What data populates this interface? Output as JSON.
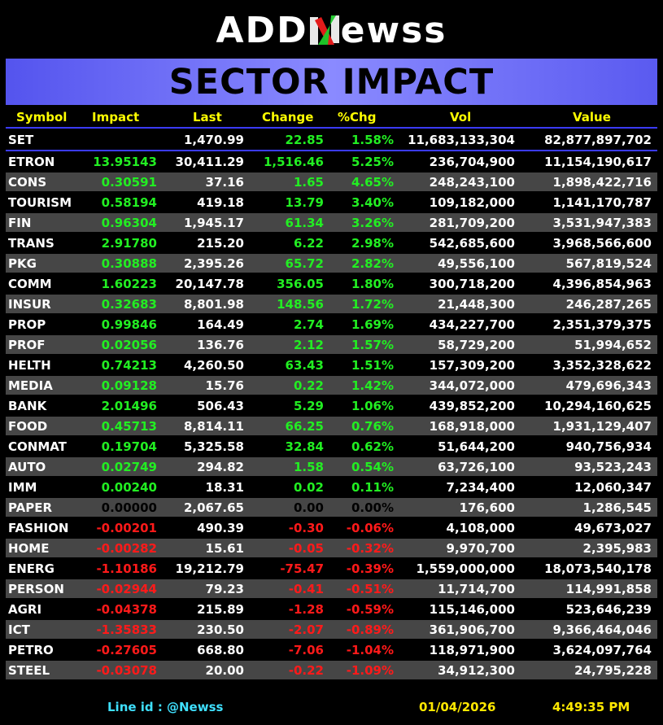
{
  "logo": {
    "part1": "ADD",
    "part2": "ewss"
  },
  "banner": {
    "title": "SECTOR IMPACT"
  },
  "headers": {
    "symbol": "Symbol",
    "impact": "Impact",
    "last": "Last",
    "change": "Change",
    "pct": "%Chg",
    "vol": "Vol",
    "value": "Value"
  },
  "set_row": {
    "symbol": "SET",
    "impact": "",
    "last": "1,470.99",
    "change": "22.85",
    "pct": "1.58%",
    "vol": "11,683,133,304",
    "value": "82,877,897,702"
  },
  "rows": [
    {
      "symbol": "ETRON",
      "impact": "13.95143",
      "last": "30,411.29",
      "change": "1,516.46",
      "pct": "5.25%",
      "vol": "236,704,900",
      "value": "11,154,190,617",
      "dir": "up"
    },
    {
      "symbol": "CONS",
      "impact": "0.30591",
      "last": "37.16",
      "change": "1.65",
      "pct": "4.65%",
      "vol": "248,243,100",
      "value": "1,898,422,716",
      "dir": "up"
    },
    {
      "symbol": "TOURISM",
      "impact": "0.58194",
      "last": "419.18",
      "change": "13.79",
      "pct": "3.40%",
      "vol": "109,182,000",
      "value": "1,141,170,787",
      "dir": "up"
    },
    {
      "symbol": "FIN",
      "impact": "0.96304",
      "last": "1,945.17",
      "change": "61.34",
      "pct": "3.26%",
      "vol": "281,709,200",
      "value": "3,531,947,383",
      "dir": "up"
    },
    {
      "symbol": "TRANS",
      "impact": "2.91780",
      "last": "215.20",
      "change": "6.22",
      "pct": "2.98%",
      "vol": "542,685,600",
      "value": "3,968,566,600",
      "dir": "up"
    },
    {
      "symbol": "PKG",
      "impact": "0.30888",
      "last": "2,395.26",
      "change": "65.72",
      "pct": "2.82%",
      "vol": "49,556,100",
      "value": "567,819,524",
      "dir": "up"
    },
    {
      "symbol": "COMM",
      "impact": "1.60223",
      "last": "20,147.78",
      "change": "356.05",
      "pct": "1.80%",
      "vol": "300,718,200",
      "value": "4,396,854,963",
      "dir": "up"
    },
    {
      "symbol": "INSUR",
      "impact": "0.32683",
      "last": "8,801.98",
      "change": "148.56",
      "pct": "1.72%",
      "vol": "21,448,300",
      "value": "246,287,265",
      "dir": "up"
    },
    {
      "symbol": "PROP",
      "impact": "0.99846",
      "last": "164.49",
      "change": "2.74",
      "pct": "1.69%",
      "vol": "434,227,700",
      "value": "2,351,379,375",
      "dir": "up"
    },
    {
      "symbol": "PROF",
      "impact": "0.02056",
      "last": "136.76",
      "change": "2.12",
      "pct": "1.57%",
      "vol": "58,729,200",
      "value": "51,994,652",
      "dir": "up"
    },
    {
      "symbol": "HELTH",
      "impact": "0.74213",
      "last": "4,260.50",
      "change": "63.43",
      "pct": "1.51%",
      "vol": "157,309,200",
      "value": "3,352,328,622",
      "dir": "up"
    },
    {
      "symbol": "MEDIA",
      "impact": "0.09128",
      "last": "15.76",
      "change": "0.22",
      "pct": "1.42%",
      "vol": "344,072,000",
      "value": "479,696,343",
      "dir": "up"
    },
    {
      "symbol": "BANK",
      "impact": "2.01496",
      "last": "506.43",
      "change": "5.29",
      "pct": "1.06%",
      "vol": "439,852,200",
      "value": "10,294,160,625",
      "dir": "up"
    },
    {
      "symbol": "FOOD",
      "impact": "0.45713",
      "last": "8,814.11",
      "change": "66.25",
      "pct": "0.76%",
      "vol": "168,918,000",
      "value": "1,931,129,407",
      "dir": "up"
    },
    {
      "symbol": "CONMAT",
      "impact": "0.19704",
      "last": "5,325.58",
      "change": "32.84",
      "pct": "0.62%",
      "vol": "51,644,200",
      "value": "940,756,934",
      "dir": "up"
    },
    {
      "symbol": "AUTO",
      "impact": "0.02749",
      "last": "294.82",
      "change": "1.58",
      "pct": "0.54%",
      "vol": "63,726,100",
      "value": "93,523,243",
      "dir": "up"
    },
    {
      "symbol": "IMM",
      "impact": "0.00240",
      "last": "18.31",
      "change": "0.02",
      "pct": "0.11%",
      "vol": "7,234,400",
      "value": "12,060,347",
      "dir": "up"
    },
    {
      "symbol": "PAPER",
      "impact": "0.00000",
      "last": "2,067.65",
      "change": "0.00",
      "pct": "0.00%",
      "vol": "176,600",
      "value": "1,286,545",
      "dir": "flat"
    },
    {
      "symbol": "FASHION",
      "impact": "-0.00201",
      "last": "490.39",
      "change": "-0.30",
      "pct": "-0.06%",
      "vol": "4,108,000",
      "value": "49,673,027",
      "dir": "down"
    },
    {
      "symbol": "HOME",
      "impact": "-0.00282",
      "last": "15.61",
      "change": "-0.05",
      "pct": "-0.32%",
      "vol": "9,970,700",
      "value": "2,395,983",
      "dir": "down"
    },
    {
      "symbol": "ENERG",
      "impact": "-1.10186",
      "last": "19,212.79",
      "change": "-75.47",
      "pct": "-0.39%",
      "vol": "1,559,000,000",
      "value": "18,073,540,178",
      "dir": "down"
    },
    {
      "symbol": "PERSON",
      "impact": "-0.02944",
      "last": "79.23",
      "change": "-0.41",
      "pct": "-0.51%",
      "vol": "11,714,700",
      "value": "114,991,858",
      "dir": "down"
    },
    {
      "symbol": "AGRI",
      "impact": "-0.04378",
      "last": "215.89",
      "change": "-1.28",
      "pct": "-0.59%",
      "vol": "115,146,000",
      "value": "523,646,239",
      "dir": "down"
    },
    {
      "symbol": "ICT",
      "impact": "-1.35833",
      "last": "230.50",
      "change": "-2.07",
      "pct": "-0.89%",
      "vol": "361,906,700",
      "value": "9,366,464,046",
      "dir": "down"
    },
    {
      "symbol": "PETRO",
      "impact": "-0.27605",
      "last": "668.80",
      "change": "-7.06",
      "pct": "-1.04%",
      "vol": "118,971,900",
      "value": "3,624,097,764",
      "dir": "down"
    },
    {
      "symbol": "STEEL",
      "impact": "-0.03078",
      "last": "20.00",
      "change": "-0.22",
      "pct": "-1.09%",
      "vol": "34,912,300",
      "value": "24,795,228",
      "dir": "down"
    }
  ],
  "footer": {
    "line_id_label": "Line id  :",
    "line_id": "@Newss",
    "date": "01/04/2026",
    "time": "4:49:35 PM"
  },
  "colors": {
    "up": "#22ee22",
    "down": "#ff1a1a",
    "header": "#ffff00",
    "accent": "#3b3bff",
    "footer_cyan": "#3fe0ff",
    "footer_yellow": "#ffe800"
  }
}
